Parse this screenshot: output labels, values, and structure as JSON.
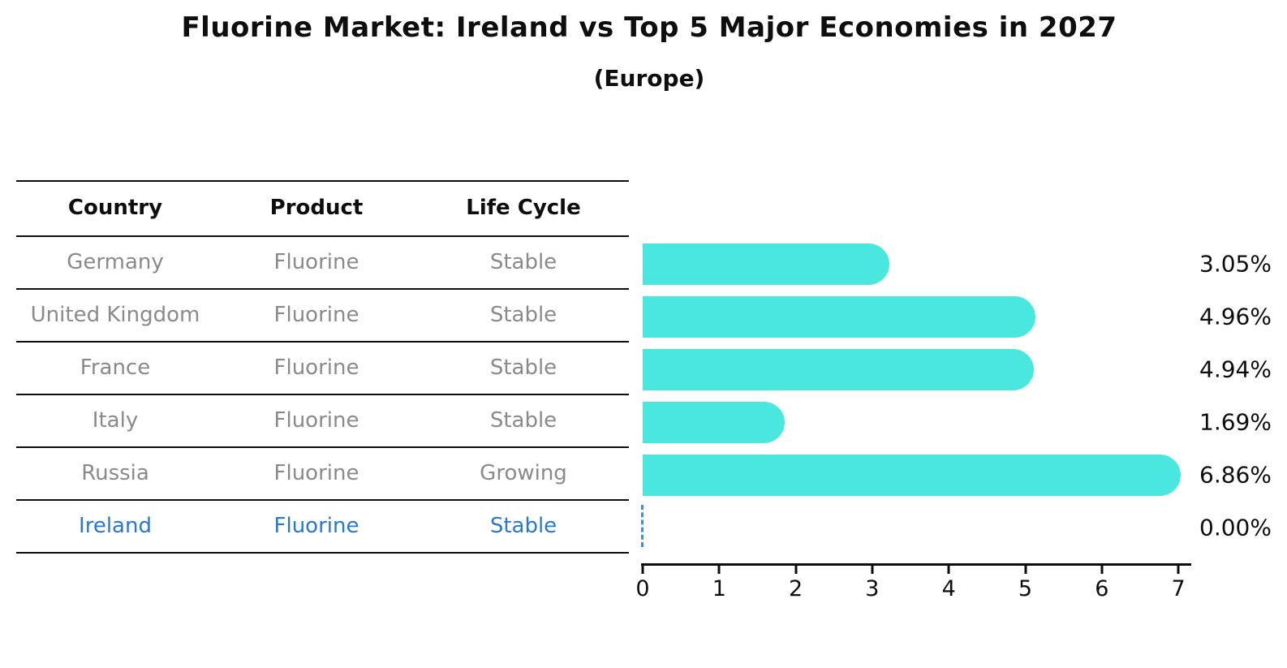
{
  "title": "Fluorine Market: Ireland vs Top 5 Major Economies in 2027",
  "subtitle": "(Europe)",
  "table": {
    "headers": [
      "Country",
      "Product",
      "Life Cycle"
    ],
    "rows": [
      {
        "country": "Germany",
        "product": "Fluorine",
        "life_cycle": "Stable",
        "highlight": false
      },
      {
        "country": "United Kingdom",
        "product": "Fluorine",
        "life_cycle": "Stable",
        "highlight": false
      },
      {
        "country": "France",
        "product": "Fluorine",
        "life_cycle": "Stable",
        "highlight": false
      },
      {
        "country": "Italy",
        "product": "Fluorine",
        "life_cycle": "Stable",
        "highlight": false
      },
      {
        "country": "Russia",
        "product": "Fluorine",
        "life_cycle": "Growing",
        "highlight": false
      },
      {
        "country": "Ireland",
        "product": "Fluorine",
        "life_cycle": "Stable",
        "highlight": true
      }
    ]
  },
  "chart_data": {
    "type": "bar",
    "orientation": "horizontal",
    "categories": [
      "Germany",
      "United Kingdom",
      "France",
      "Italy",
      "Russia",
      "Ireland"
    ],
    "values": [
      3.05,
      4.96,
      4.94,
      1.69,
      6.86,
      0.0
    ],
    "value_labels": [
      "3.05%",
      "4.96%",
      "4.94%",
      "1.69%",
      "6.86%",
      "0.00%"
    ],
    "title": "Fluorine Market: Ireland vs Top 5 Major Economies in 2027",
    "subtitle": "(Europe)",
    "xlabel": "",
    "ylabel": "",
    "x_ticks": [
      0,
      1,
      2,
      3,
      4,
      5,
      6,
      7
    ],
    "xlim": [
      0,
      7.17
    ],
    "grid": false,
    "legend": "none",
    "bar_color": "#4ae7df",
    "highlight_text_color": "#2878d2",
    "zero_marker_line_color": "#4a8fc4"
  }
}
